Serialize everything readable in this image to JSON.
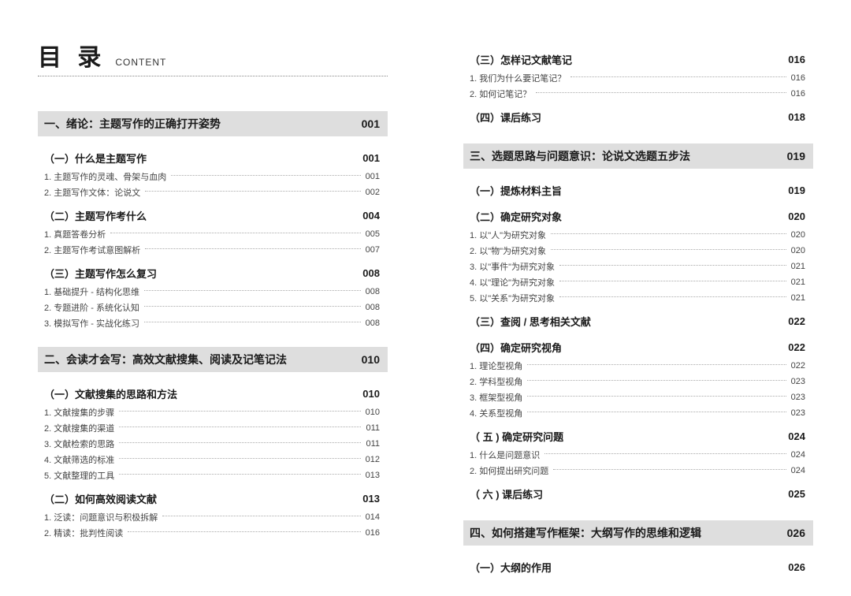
{
  "colors": {
    "page_bg": "#ffffff",
    "chapter_bg": "#dedede",
    "text_primary": "#1a1a1a",
    "text_secondary": "#444444",
    "dot_color": "#aaaaaa",
    "divider_color": "#cccccc"
  },
  "typography": {
    "header_cn_size": 30,
    "header_en_size": 12,
    "chapter_size": 14,
    "section_size": 13,
    "item_size": 11
  },
  "header": {
    "cn": "目 录",
    "en": "CONTENT"
  },
  "left": {
    "chapters": [
      {
        "title": "一、绪论：主题写作的正确打开姿势",
        "page": "001",
        "sections": [
          {
            "title": "（一）什么是主题写作",
            "page": "001",
            "items": [
              {
                "title": "1. 主题写作的灵魂、骨架与血肉",
                "page": "001"
              },
              {
                "title": "2. 主题写作文体：论说文",
                "page": "002"
              }
            ]
          },
          {
            "title": "（二）主题写作考什么",
            "page": "004",
            "items": [
              {
                "title": "1. 真题答卷分析",
                "page": "005"
              },
              {
                "title": "2. 主题写作考试意图解析",
                "page": "007"
              }
            ]
          },
          {
            "title": "（三）主题写作怎么复习",
            "page": "008",
            "items": [
              {
                "title": "1. 基础提升 - 结构化思维",
                "page": "008"
              },
              {
                "title": "2. 专题进阶 - 系统化认知",
                "page": "008"
              },
              {
                "title": "3. 模拟写作 - 实战化练习",
                "page": "008"
              }
            ]
          }
        ]
      },
      {
        "title": "二、会读才会写：高效文献搜集、阅读及记笔记法",
        "page": "010",
        "sections": [
          {
            "title": "（一）文献搜集的思路和方法",
            "page": "010",
            "items": [
              {
                "title": "1. 文献搜集的步骤",
                "page": "010"
              },
              {
                "title": "2. 文献搜集的渠道",
                "page": "011"
              },
              {
                "title": "3. 文献检索的思路",
                "page": "011"
              },
              {
                "title": "4. 文献筛选的标准",
                "page": "012"
              },
              {
                "title": "5. 文献整理的工具",
                "page": "013"
              }
            ]
          },
          {
            "title": "（二）如何高效阅读文献",
            "page": "013",
            "items": [
              {
                "title": "1. 泛读：问题意识与积极拆解",
                "page": "014"
              },
              {
                "title": "2. 精读：批判性阅读",
                "page": "016"
              }
            ]
          }
        ]
      }
    ]
  },
  "right": {
    "pre_sections": [
      {
        "title": "（三）怎样记文献笔记",
        "page": "016",
        "items": [
          {
            "title": "1. 我们为什么要记笔记？",
            "page": "016"
          },
          {
            "title": "2. 如何记笔记？",
            "page": "016"
          }
        ]
      },
      {
        "title": "（四）课后练习",
        "page": "018",
        "items": []
      }
    ],
    "chapters": [
      {
        "title": "三、选题思路与问题意识：论说文选题五步法",
        "page": "019",
        "sections": [
          {
            "title": "（一）提炼材料主旨",
            "page": "019",
            "items": []
          },
          {
            "title": "（二）确定研究对象",
            "page": "020",
            "items": [
              {
                "title": "1. 以\"人\"为研究对象",
                "page": "020"
              },
              {
                "title": "2. 以\"物\"为研究对象",
                "page": "020"
              },
              {
                "title": "3. 以\"事件\"为研究对象",
                "page": "021"
              },
              {
                "title": "4. 以\"理论\"为研究对象",
                "page": "021"
              },
              {
                "title": "5. 以\"关系\"为研究对象",
                "page": "021"
              }
            ]
          },
          {
            "title": "（三）查阅 / 思考相关文献",
            "page": "022",
            "items": []
          },
          {
            "title": "（四）确定研究视角",
            "page": "022",
            "items": [
              {
                "title": "1. 理论型视角",
                "page": "022"
              },
              {
                "title": "2. 学科型视角",
                "page": "023"
              },
              {
                "title": "3. 框架型视角",
                "page": "023"
              },
              {
                "title": "4. 关系型视角",
                "page": "023"
              }
            ]
          },
          {
            "title": "（ 五 ) 确定研究问题",
            "page": "024",
            "items": [
              {
                "title": "1. 什么是问题意识",
                "page": "024"
              },
              {
                "title": "2. 如何提出研究问题",
                "page": "024"
              }
            ]
          },
          {
            "title": "（ 六 ) 课后练习",
            "page": "025",
            "items": []
          }
        ]
      },
      {
        "title": "四、如何搭建写作框架：大纲写作的思维和逻辑",
        "page": "026",
        "sections": [
          {
            "title": "（一）大纲的作用",
            "page": "026",
            "items": []
          }
        ]
      }
    ]
  }
}
